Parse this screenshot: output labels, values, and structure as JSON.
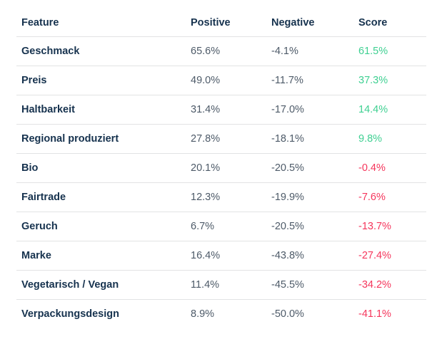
{
  "table": {
    "columns": [
      "Feature",
      "Positive",
      "Negative",
      "Score"
    ],
    "rows": [
      {
        "feature": "Geschmack",
        "positive": "65.6%",
        "negative": "-4.1%",
        "score": "61.5%"
      },
      {
        "feature": "Preis",
        "positive": "49.0%",
        "negative": "-11.7%",
        "score": "37.3%"
      },
      {
        "feature": "Haltbarkeit",
        "positive": "31.4%",
        "negative": "-17.0%",
        "score": "14.4%"
      },
      {
        "feature": "Regional produziert",
        "positive": "27.8%",
        "negative": "-18.1%",
        "score": "9.8%"
      },
      {
        "feature": "Bio",
        "positive": "20.1%",
        "negative": "-20.5%",
        "score": "-0.4%"
      },
      {
        "feature": "Fairtrade",
        "positive": "12.3%",
        "negative": "-19.9%",
        "score": "-7.6%"
      },
      {
        "feature": "Geruch",
        "positive": "6.7%",
        "negative": "-20.5%",
        "score": "-13.7%"
      },
      {
        "feature": "Marke",
        "positive": "16.4%",
        "negative": "-43.8%",
        "score": "-27.4%"
      },
      {
        "feature": "Vegetarisch / Vegan",
        "positive": "11.4%",
        "negative": "-45.5%",
        "score": "-34.2%"
      },
      {
        "feature": "Verpackungsdesign",
        "positive": "8.9%",
        "negative": "-50.0%",
        "score": "-41.1%"
      }
    ]
  },
  "chart_data": {
    "type": "table",
    "columns": [
      "Feature",
      "Positive",
      "Negative",
      "Score"
    ],
    "categories": [
      "Geschmack",
      "Preis",
      "Haltbarkeit",
      "Regional produziert",
      "Bio",
      "Fairtrade",
      "Geruch",
      "Marke",
      "Vegetarisch / Vegan",
      "Verpackungsdesign"
    ],
    "series": [
      {
        "name": "Positive",
        "values": [
          65.6,
          49.0,
          31.4,
          27.8,
          20.1,
          12.3,
          6.7,
          16.4,
          11.4,
          8.9
        ]
      },
      {
        "name": "Negative",
        "values": [
          -4.1,
          -11.7,
          -17.0,
          -18.1,
          -20.5,
          -19.9,
          -20.5,
          -43.8,
          -45.5,
          -50.0
        ]
      },
      {
        "name": "Score",
        "values": [
          61.5,
          37.3,
          14.4,
          9.8,
          -0.4,
          -7.6,
          -13.7,
          -27.4,
          -34.2,
          -41.1
        ]
      }
    ]
  },
  "colors": {
    "header_text": "#16324e",
    "feature_text": "#16324e",
    "value_text": "#4d5a68",
    "score_positive": "#3fd092",
    "score_negative": "#f5365c",
    "divider": "#e2e3e4",
    "background": "#ffffff"
  }
}
